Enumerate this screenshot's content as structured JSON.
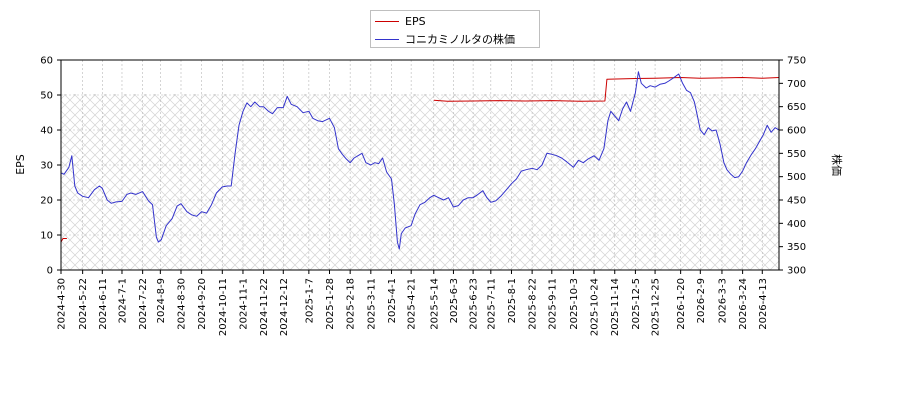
{
  "chart_data": {
    "type": "line",
    "legend": {
      "position": "top-center",
      "entries": [
        "EPS",
        "コニカミノルタの株価"
      ]
    },
    "y_left": {
      "label": "EPS",
      "range": [
        0,
        60
      ],
      "ticks": [
        0,
        10,
        20,
        30,
        40,
        50,
        60
      ]
    },
    "y_right": {
      "label": "株価",
      "range": [
        300,
        750
      ],
      "ticks": [
        300,
        350,
        400,
        450,
        500,
        550,
        600,
        650,
        700,
        750
      ]
    },
    "x_range": [
      "2024-04-30",
      "2026-04-30"
    ],
    "x_ticks": [
      "2024-4-30",
      "2024-5-22",
      "2024-6-11",
      "2024-7-1",
      "2024-7-22",
      "2024-8-9",
      "2024-8-30",
      "2024-9-20",
      "2024-10-11",
      "2024-11-1",
      "2024-11-22",
      "2024-12-12",
      "2025-1-7",
      "2025-1-28",
      "2025-2-18",
      "2025-3-11",
      "2025-4-1",
      "2025-4-21",
      "2025-5-14",
      "2025-6-3",
      "2025-6-23",
      "2025-7-11",
      "2025-8-1",
      "2025-8-22",
      "2025-9-11",
      "2025-10-3",
      "2025-10-24",
      "2025-11-14",
      "2025-12-5",
      "2025-12-25",
      "2026-1-20",
      "2026-2-9",
      "2026-3-3",
      "2026-3-24",
      "2026-4-13"
    ],
    "grid": true,
    "series": [
      {
        "name": "EPS",
        "color": "#cc0000",
        "axis": "left",
        "points": [
          [
            "2024-04-30",
            8.0
          ],
          [
            "2024-05-02",
            9.0
          ],
          [
            "2024-05-06",
            9.0
          ],
          [
            "2025-05-14",
            48.5
          ],
          [
            "2025-05-28",
            48.2
          ],
          [
            "2025-06-23",
            48.3
          ],
          [
            "2025-07-18",
            48.4
          ],
          [
            "2025-08-15",
            48.3
          ],
          [
            "2025-09-12",
            48.4
          ],
          [
            "2025-10-10",
            48.2
          ],
          [
            "2025-11-04",
            48.3
          ],
          [
            "2025-11-06",
            54.5
          ],
          [
            "2025-12-05",
            54.7
          ],
          [
            "2025-12-25",
            54.8
          ],
          [
            "2026-01-20",
            55.0
          ],
          [
            "2026-02-09",
            54.8
          ],
          [
            "2026-03-03",
            54.9
          ],
          [
            "2026-03-24",
            55.0
          ],
          [
            "2026-04-13",
            54.8
          ],
          [
            "2026-04-30",
            55.0
          ]
        ]
      },
      {
        "name": "コニカミノルタの株価",
        "color": "#3333cc",
        "axis": "right",
        "points": [
          [
            "2024-04-30",
            508
          ],
          [
            "2024-05-03",
            505
          ],
          [
            "2024-05-08",
            520
          ],
          [
            "2024-05-11",
            545
          ],
          [
            "2024-05-14",
            480
          ],
          [
            "2024-05-17",
            465
          ],
          [
            "2024-05-22",
            458
          ],
          [
            "2024-05-28",
            455
          ],
          [
            "2024-06-03",
            472
          ],
          [
            "2024-06-08",
            480
          ],
          [
            "2024-06-11",
            475
          ],
          [
            "2024-06-16",
            450
          ],
          [
            "2024-06-20",
            443
          ],
          [
            "2024-06-25",
            446
          ],
          [
            "2024-07-01",
            447
          ],
          [
            "2024-07-06",
            462
          ],
          [
            "2024-07-10",
            465
          ],
          [
            "2024-07-15",
            462
          ],
          [
            "2024-07-22",
            468
          ],
          [
            "2024-07-28",
            448
          ],
          [
            "2024-08-01",
            440
          ],
          [
            "2024-08-05",
            370
          ],
          [
            "2024-08-07",
            360
          ],
          [
            "2024-08-10",
            365
          ],
          [
            "2024-08-15",
            395
          ],
          [
            "2024-08-21",
            410
          ],
          [
            "2024-08-26",
            437
          ],
          [
            "2024-08-30",
            442
          ],
          [
            "2024-09-05",
            425
          ],
          [
            "2024-09-10",
            418
          ],
          [
            "2024-09-15",
            415
          ],
          [
            "2024-09-20",
            425
          ],
          [
            "2024-09-25",
            422
          ],
          [
            "2024-09-30",
            440
          ],
          [
            "2024-10-05",
            465
          ],
          [
            "2024-10-11",
            478
          ],
          [
            "2024-10-16",
            480
          ],
          [
            "2024-10-20",
            480
          ],
          [
            "2024-10-24",
            550
          ],
          [
            "2024-10-28",
            610
          ],
          [
            "2024-11-01",
            640
          ],
          [
            "2024-11-05",
            658
          ],
          [
            "2024-11-09",
            650
          ],
          [
            "2024-11-13",
            660
          ],
          [
            "2024-11-18",
            650
          ],
          [
            "2024-11-22",
            650
          ],
          [
            "2024-11-27",
            640
          ],
          [
            "2024-12-01",
            635
          ],
          [
            "2024-12-06",
            648
          ],
          [
            "2024-12-12",
            648
          ],
          [
            "2024-12-16",
            672
          ],
          [
            "2024-12-20",
            655
          ],
          [
            "2024-12-26",
            650
          ],
          [
            "2025-01-01",
            637
          ],
          [
            "2025-01-07",
            640
          ],
          [
            "2025-01-11",
            625
          ],
          [
            "2025-01-16",
            620
          ],
          [
            "2025-01-21",
            618
          ],
          [
            "2025-01-28",
            625
          ],
          [
            "2025-02-02",
            605
          ],
          [
            "2025-02-06",
            560
          ],
          [
            "2025-02-10",
            548
          ],
          [
            "2025-02-14",
            538
          ],
          [
            "2025-02-18",
            530
          ],
          [
            "2025-02-22",
            540
          ],
          [
            "2025-02-26",
            545
          ],
          [
            "2025-03-02",
            550
          ],
          [
            "2025-03-06",
            530
          ],
          [
            "2025-03-11",
            525
          ],
          [
            "2025-03-15",
            530
          ],
          [
            "2025-03-19",
            528
          ],
          [
            "2025-03-23",
            540
          ],
          [
            "2025-03-27",
            510
          ],
          [
            "2025-04-01",
            495
          ],
          [
            "2025-04-04",
            440
          ],
          [
            "2025-04-07",
            360
          ],
          [
            "2025-04-09",
            345
          ],
          [
            "2025-04-11",
            378
          ],
          [
            "2025-04-15",
            390
          ],
          [
            "2025-04-21",
            395
          ],
          [
            "2025-04-25",
            420
          ],
          [
            "2025-04-30",
            440
          ],
          [
            "2025-05-05",
            445
          ],
          [
            "2025-05-10",
            455
          ],
          [
            "2025-05-14",
            460
          ],
          [
            "2025-05-19",
            455
          ],
          [
            "2025-05-24",
            450
          ],
          [
            "2025-05-29",
            455
          ],
          [
            "2025-06-03",
            435
          ],
          [
            "2025-06-08",
            438
          ],
          [
            "2025-06-13",
            450
          ],
          [
            "2025-06-18",
            455
          ],
          [
            "2025-06-23",
            455
          ],
          [
            "2025-06-28",
            462
          ],
          [
            "2025-07-03",
            470
          ],
          [
            "2025-07-07",
            455
          ],
          [
            "2025-07-11",
            445
          ],
          [
            "2025-07-16",
            448
          ],
          [
            "2025-07-21",
            458
          ],
          [
            "2025-07-26",
            470
          ],
          [
            "2025-08-01",
            485
          ],
          [
            "2025-08-06",
            495
          ],
          [
            "2025-08-11",
            512
          ],
          [
            "2025-08-16",
            515
          ],
          [
            "2025-08-22",
            518
          ],
          [
            "2025-08-27",
            515
          ],
          [
            "2025-09-01",
            525
          ],
          [
            "2025-09-06",
            550
          ],
          [
            "2025-09-11",
            548
          ],
          [
            "2025-09-16",
            545
          ],
          [
            "2025-09-21",
            540
          ],
          [
            "2025-09-26",
            532
          ],
          [
            "2025-10-03",
            520
          ],
          [
            "2025-10-08",
            535
          ],
          [
            "2025-10-13",
            530
          ],
          [
            "2025-10-18",
            538
          ],
          [
            "2025-10-24",
            545
          ],
          [
            "2025-10-29",
            535
          ],
          [
            "2025-11-03",
            560
          ],
          [
            "2025-11-07",
            620
          ],
          [
            "2025-11-10",
            640
          ],
          [
            "2025-11-14",
            630
          ],
          [
            "2025-11-18",
            620
          ],
          [
            "2025-11-22",
            645
          ],
          [
            "2025-11-26",
            660
          ],
          [
            "2025-11-30",
            640
          ],
          [
            "2025-12-05",
            680
          ],
          [
            "2025-12-08",
            725
          ],
          [
            "2025-12-11",
            700
          ],
          [
            "2025-12-16",
            690
          ],
          [
            "2025-12-20",
            695
          ],
          [
            "2025-12-25",
            692
          ],
          [
            "2025-12-30",
            698
          ],
          [
            "2026-01-04",
            700
          ],
          [
            "2026-01-08",
            705
          ],
          [
            "2026-01-13",
            712
          ],
          [
            "2026-01-18",
            720
          ],
          [
            "2026-01-22",
            700
          ],
          [
            "2026-01-26",
            685
          ],
          [
            "2026-01-30",
            680
          ],
          [
            "2026-02-03",
            660
          ],
          [
            "2026-02-06",
            630
          ],
          [
            "2026-02-09",
            600
          ],
          [
            "2026-02-13",
            590
          ],
          [
            "2026-02-17",
            605
          ],
          [
            "2026-02-21",
            598
          ],
          [
            "2026-02-25",
            600
          ],
          [
            "2026-03-01",
            570
          ],
          [
            "2026-03-05",
            530
          ],
          [
            "2026-03-08",
            515
          ],
          [
            "2026-03-12",
            505
          ],
          [
            "2026-03-16",
            498
          ],
          [
            "2026-03-20",
            500
          ],
          [
            "2026-03-24",
            512
          ],
          [
            "2026-03-28",
            530
          ],
          [
            "2026-04-02",
            548
          ],
          [
            "2026-04-06",
            560
          ],
          [
            "2026-04-10",
            575
          ],
          [
            "2026-04-14",
            590
          ],
          [
            "2026-04-18",
            610
          ],
          [
            "2026-04-22",
            595
          ],
          [
            "2026-04-26",
            605
          ],
          [
            "2026-04-30",
            600
          ]
        ]
      }
    ]
  }
}
